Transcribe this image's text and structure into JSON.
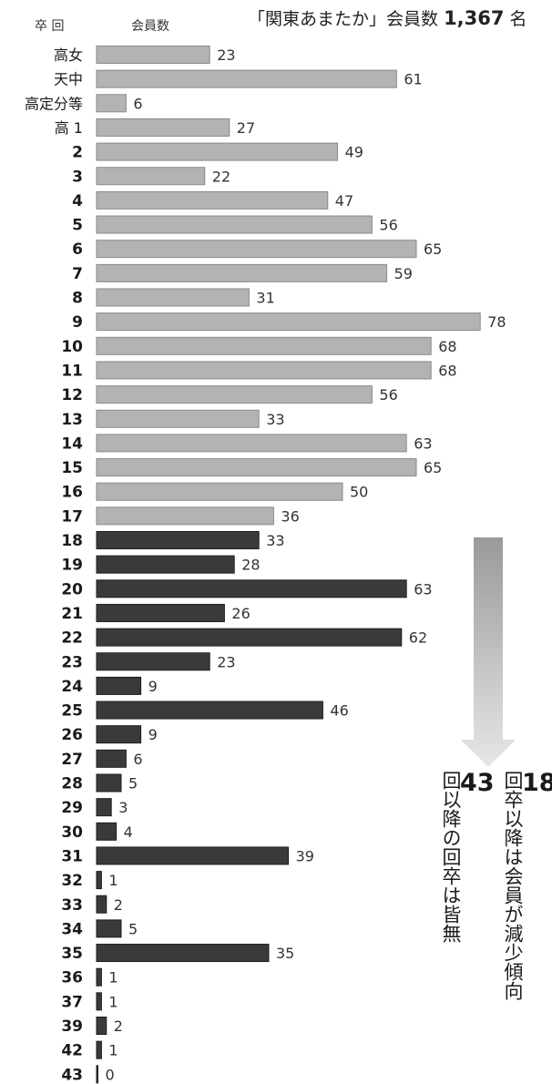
{
  "header": {
    "title_prefix": "「関東あまたか」会員数",
    "title_count": "1,367",
    "title_suffix": "名",
    "col_class": "卒 回",
    "col_members": "会員数"
  },
  "notes": {
    "decline_num": "18",
    "decline_text": "回卒以降は会員が減少傾向",
    "none_num": "43",
    "none_text": "回以降の回卒は皆無"
  },
  "colors": {
    "light_bar": "#b3b3b3",
    "dark_bar": "#3a3a3a",
    "arrow": "#cfcfcf"
  },
  "chart_data": {
    "type": "bar",
    "orientation": "horizontal",
    "title": "「関東あまたか」会員数 1,367 名",
    "xlabel": "会員数",
    "ylabel": "卒 回",
    "categories": [
      "高女",
      "天中",
      "高定分等",
      "高 1",
      "2",
      "3",
      "4",
      "5",
      "6",
      "7",
      "8",
      "9",
      "10",
      "11",
      "12",
      "13",
      "14",
      "15",
      "16",
      "17",
      "18",
      "19",
      "20",
      "21",
      "22",
      "23",
      "24",
      "25",
      "26",
      "27",
      "28",
      "29",
      "30",
      "31",
      "32",
      "33",
      "34",
      "35",
      "36",
      "37",
      "39",
      "42",
      "43"
    ],
    "values": [
      23,
      61,
      6,
      27,
      49,
      22,
      47,
      56,
      65,
      59,
      31,
      78,
      68,
      68,
      56,
      33,
      63,
      65,
      50,
      36,
      33,
      28,
      63,
      26,
      62,
      23,
      9,
      46,
      9,
      6,
      5,
      3,
      4,
      39,
      1,
      2,
      5,
      35,
      1,
      1,
      2,
      1,
      0
    ],
    "highlight_from": "18",
    "xlim": [
      0,
      80
    ],
    "grid": false,
    "legend": "none"
  }
}
